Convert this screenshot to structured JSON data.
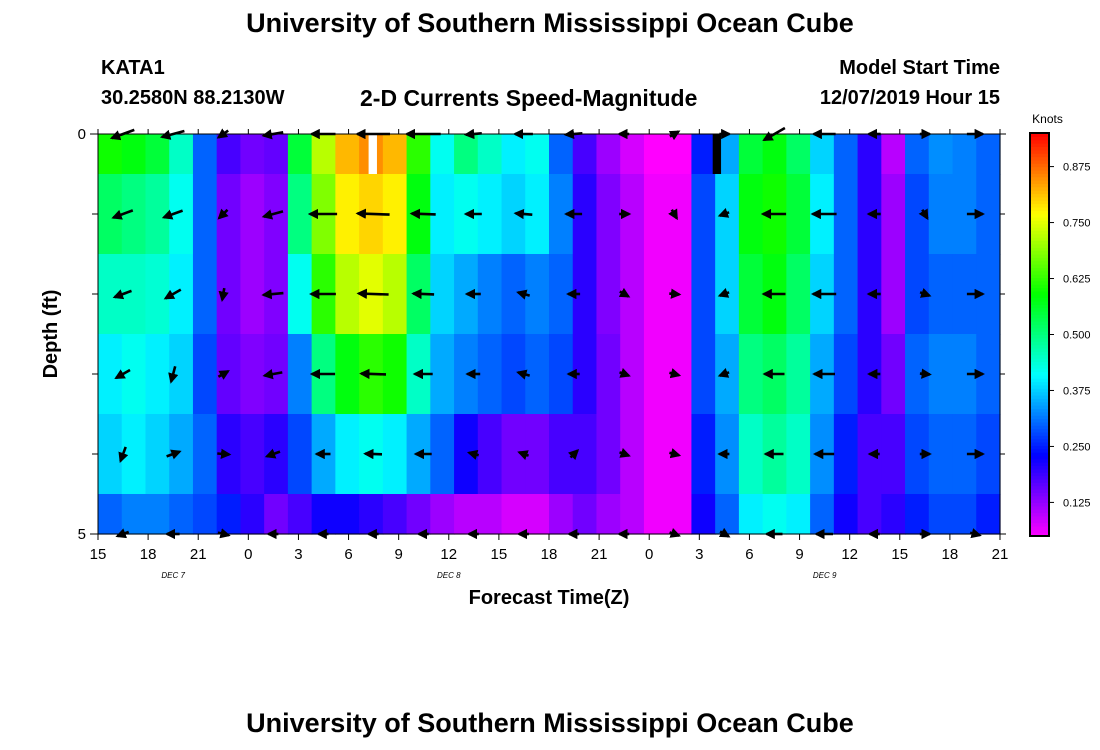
{
  "header": {
    "title": "University of Southern Mississippi Ocean Cube",
    "station": "KATA1",
    "coords": "30.2580N 88.2130W",
    "subtitle": "2-D Currents Speed-Magnitude",
    "model_start_label": "Model Start Time",
    "model_start_value": "12/07/2019 Hour 15"
  },
  "footer": {
    "title": "University of Southern Mississippi Ocean Cube"
  },
  "chart_data": {
    "type": "heatmap",
    "title": "2-D Currents Speed-Magnitude",
    "xlabel": "Forecast Time(Z)",
    "ylabel": "Depth (ft)",
    "x_range_hours": [
      0,
      54
    ],
    "y_range_ft": [
      0,
      5
    ],
    "x_tick_labels": [
      "15",
      "18",
      "21",
      "0",
      "3",
      "6",
      "9",
      "12",
      "15",
      "18",
      "21",
      "0",
      "3",
      "6",
      "9",
      "12",
      "15",
      "18",
      "21"
    ],
    "y_tick_labels": [
      "0",
      "5"
    ],
    "y_minor_ticks_ft": [
      1,
      2,
      3,
      4
    ],
    "date_labels": [
      {
        "text": "DEC 7",
        "hour": 4.5
      },
      {
        "text": "DEC 8",
        "hour": 21
      },
      {
        "text": "DEC 9",
        "hour": 43.5
      }
    ],
    "colorbar": {
      "label": "Knots",
      "min": 0.05,
      "max": 0.95,
      "ticks": [
        0.125,
        0.25,
        0.375,
        0.5,
        0.625,
        0.75,
        0.875
      ],
      "tick_labels": [
        "0.125",
        "0.250",
        "0.375",
        "0.500",
        "0.625",
        "0.750",
        "0.875"
      ]
    },
    "layers_ft": [
      0,
      0.5,
      1.5,
      2.5,
      3.5,
      4.5,
      5
    ],
    "speed_knots": [
      [
        0.6,
        0.58,
        0.55,
        0.45,
        0.3,
        0.18,
        0.15,
        0.16,
        0.55,
        0.72,
        0.82,
        0.85,
        0.82,
        0.62,
        0.42,
        0.5,
        0.45,
        0.4,
        0.42,
        0.3,
        0.18,
        0.12,
        0.08,
        0.05,
        0.05,
        0.25,
        0.35,
        0.55,
        0.58,
        0.52,
        0.38,
        0.3,
        0.2,
        0.1,
        0.3,
        0.33,
        0.32,
        0.3
      ],
      [
        0.52,
        0.5,
        0.48,
        0.42,
        0.3,
        0.15,
        0.12,
        0.14,
        0.5,
        0.68,
        0.78,
        0.8,
        0.78,
        0.58,
        0.4,
        0.42,
        0.4,
        0.38,
        0.4,
        0.32,
        0.2,
        0.14,
        0.1,
        0.06,
        0.06,
        0.28,
        0.38,
        0.58,
        0.6,
        0.55,
        0.4,
        0.3,
        0.2,
        0.12,
        0.28,
        0.32,
        0.32,
        0.3
      ],
      [
        0.45,
        0.45,
        0.44,
        0.4,
        0.3,
        0.15,
        0.12,
        0.14,
        0.42,
        0.62,
        0.72,
        0.75,
        0.72,
        0.52,
        0.38,
        0.35,
        0.32,
        0.3,
        0.32,
        0.3,
        0.2,
        0.14,
        0.1,
        0.06,
        0.06,
        0.28,
        0.38,
        0.55,
        0.58,
        0.52,
        0.38,
        0.3,
        0.2,
        0.12,
        0.28,
        0.3,
        0.3,
        0.3
      ],
      [
        0.4,
        0.42,
        0.4,
        0.38,
        0.28,
        0.16,
        0.14,
        0.15,
        0.32,
        0.5,
        0.58,
        0.62,
        0.6,
        0.45,
        0.35,
        0.32,
        0.3,
        0.28,
        0.3,
        0.28,
        0.2,
        0.15,
        0.1,
        0.06,
        0.06,
        0.28,
        0.35,
        0.5,
        0.52,
        0.48,
        0.35,
        0.28,
        0.2,
        0.15,
        0.3,
        0.32,
        0.32,
        0.3
      ],
      [
        0.38,
        0.4,
        0.38,
        0.35,
        0.3,
        0.2,
        0.18,
        0.2,
        0.28,
        0.35,
        0.4,
        0.42,
        0.4,
        0.35,
        0.3,
        0.22,
        0.18,
        0.15,
        0.15,
        0.18,
        0.18,
        0.15,
        0.1,
        0.06,
        0.06,
        0.25,
        0.33,
        0.45,
        0.48,
        0.45,
        0.33,
        0.25,
        0.18,
        0.18,
        0.28,
        0.3,
        0.3,
        0.28
      ],
      [
        0.3,
        0.32,
        0.32,
        0.3,
        0.28,
        0.25,
        0.2,
        0.15,
        0.18,
        0.22,
        0.22,
        0.2,
        0.18,
        0.15,
        0.12,
        0.1,
        0.1,
        0.08,
        0.08,
        0.12,
        0.15,
        0.12,
        0.1,
        0.06,
        0.06,
        0.22,
        0.3,
        0.4,
        0.42,
        0.4,
        0.3,
        0.22,
        0.18,
        0.2,
        0.25,
        0.28,
        0.28,
        0.25
      ]
    ],
    "gaps": [
      {
        "hour_start": 16.2,
        "hour_end": 16.7,
        "depth_start": 0,
        "depth_end": 0.5,
        "color": "#ffffff"
      },
      {
        "hour_start": 36.8,
        "hour_end": 37.3,
        "depth_start": 0,
        "depth_end": 0.5,
        "color": "#000000"
      }
    ],
    "vector_rows_ft": [
      0,
      1,
      2,
      3,
      4,
      5
    ],
    "vector_hours": [
      1.5,
      4.5,
      7.5,
      10.5,
      13.5,
      16.5,
      19.5,
      22.5,
      25.5,
      28.5,
      31.5,
      34.5,
      37.5,
      40.5,
      43.5,
      46.5,
      49.5,
      52.5
    ],
    "vectors": [
      [
        [
          0.6,
          200
        ],
        [
          0.58,
          195
        ],
        [
          0.3,
          215
        ],
        [
          0.5,
          190
        ],
        [
          0.6,
          180
        ],
        [
          0.82,
          180
        ],
        [
          0.85,
          180
        ],
        [
          0.4,
          185
        ],
        [
          0.45,
          180
        ],
        [
          0.42,
          185
        ],
        [
          0.2,
          180
        ],
        [
          0.1,
          30
        ],
        [
          0.05,
          0
        ],
        [
          0.6,
          210
        ],
        [
          0.55,
          180
        ],
        [
          0.3,
          180
        ],
        [
          0.2,
          0
        ],
        [
          0.4,
          0
        ]
      ],
      [
        [
          0.52,
          200
        ],
        [
          0.5,
          200
        ],
        [
          0.3,
          225
        ],
        [
          0.5,
          195
        ],
        [
          0.68,
          180
        ],
        [
          0.8,
          178
        ],
        [
          0.6,
          178
        ],
        [
          0.4,
          180
        ],
        [
          0.42,
          175
        ],
        [
          0.4,
          180
        ],
        [
          0.2,
          0
        ],
        [
          0.14,
          300
        ],
        [
          0.06,
          200
        ],
        [
          0.58,
          180
        ],
        [
          0.6,
          180
        ],
        [
          0.3,
          180
        ],
        [
          0.2,
          300
        ],
        [
          0.4,
          0
        ]
      ],
      [
        [
          0.45,
          200
        ],
        [
          0.44,
          210
        ],
        [
          0.3,
          260
        ],
        [
          0.5,
          185
        ],
        [
          0.62,
          180
        ],
        [
          0.75,
          178
        ],
        [
          0.52,
          178
        ],
        [
          0.35,
          180
        ],
        [
          0.3,
          165
        ],
        [
          0.3,
          180
        ],
        [
          0.2,
          330
        ],
        [
          0.1,
          355
        ],
        [
          0.06,
          200
        ],
        [
          0.55,
          180
        ],
        [
          0.58,
          180
        ],
        [
          0.3,
          180
        ],
        [
          0.2,
          340
        ],
        [
          0.4,
          0
        ]
      ],
      [
        [
          0.4,
          210
        ],
        [
          0.4,
          255
        ],
        [
          0.28,
          30
        ],
        [
          0.45,
          190
        ],
        [
          0.58,
          180
        ],
        [
          0.62,
          178
        ],
        [
          0.45,
          180
        ],
        [
          0.32,
          180
        ],
        [
          0.3,
          165
        ],
        [
          0.28,
          180
        ],
        [
          0.2,
          340
        ],
        [
          0.1,
          345
        ],
        [
          0.06,
          200
        ],
        [
          0.5,
          180
        ],
        [
          0.52,
          180
        ],
        [
          0.28,
          180
        ],
        [
          0.2,
          355
        ],
        [
          0.4,
          0
        ]
      ],
      [
        [
          0.38,
          250
        ],
        [
          0.35,
          20
        ],
        [
          0.3,
          355
        ],
        [
          0.35,
          200
        ],
        [
          0.35,
          180
        ],
        [
          0.42,
          178
        ],
        [
          0.4,
          180
        ],
        [
          0.22,
          165
        ],
        [
          0.15,
          160
        ],
        [
          0.18,
          45
        ],
        [
          0.18,
          340
        ],
        [
          0.1,
          345
        ],
        [
          0.06,
          180
        ],
        [
          0.45,
          180
        ],
        [
          0.48,
          180
        ],
        [
          0.25,
          180
        ],
        [
          0.2,
          0
        ],
        [
          0.4,
          0
        ]
      ],
      [
        [
          0.3,
          200
        ],
        [
          0.32,
          180
        ],
        [
          0.28,
          345
        ],
        [
          0.25,
          180
        ],
        [
          0.22,
          180
        ],
        [
          0.2,
          180
        ],
        [
          0.15,
          180
        ],
        [
          0.1,
          180
        ],
        [
          0.08,
          180
        ],
        [
          0.12,
          180
        ],
        [
          0.15,
          180
        ],
        [
          0.12,
          340
        ],
        [
          0.06,
          330
        ],
        [
          0.4,
          180
        ],
        [
          0.42,
          180
        ],
        [
          0.22,
          180
        ],
        [
          0.18,
          0
        ],
        [
          0.25,
          345
        ]
      ]
    ]
  }
}
